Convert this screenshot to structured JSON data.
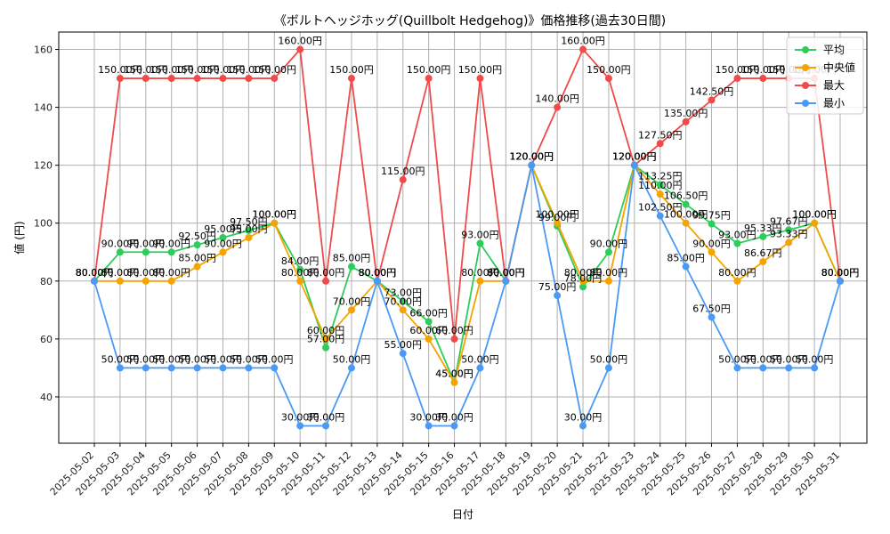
{
  "chart_data": {
    "type": "line",
    "title": "《ボルトヘッジホッグ(Quillbolt Hedgehog)》価格推移(過去30日間)",
    "xlabel": "日付",
    "ylabel": "値 (円)",
    "value_suffix": "円",
    "ylim": [
      24,
      166
    ],
    "yticks": [
      40,
      60,
      80,
      100,
      120,
      140,
      160
    ],
    "grid": true,
    "legend_position": "top-right",
    "categories": [
      "2025-05-02",
      "2025-05-03",
      "2025-05-04",
      "2025-05-05",
      "2025-05-06",
      "2025-05-07",
      "2025-05-08",
      "2025-05-09",
      "2025-05-10",
      "2025-05-11",
      "2025-05-12",
      "2025-05-13",
      "2025-05-14",
      "2025-05-15",
      "2025-05-16",
      "2025-05-17",
      "2025-05-18",
      "2025-05-19",
      "2025-05-20",
      "2025-05-21",
      "2025-05-22",
      "2025-05-23",
      "2025-05-24",
      "2025-05-25",
      "2025-05-26",
      "2025-05-27",
      "2025-05-28",
      "2025-05-29",
      "2025-05-30",
      "2025-05-31"
    ],
    "series": [
      {
        "name": "平均",
        "color": "#2ecc5a",
        "values": [
          80,
          90,
          90,
          90,
          92.5,
          95,
          97.5,
          100,
          84,
          57,
          85,
          80,
          73,
          66,
          45,
          93,
          80,
          120,
          99,
          78,
          90,
          120,
          113.25,
          106.5,
          99.75,
          93,
          95.33,
          97.67,
          100,
          80
        ]
      },
      {
        "name": "中央値",
        "color": "#f5a300",
        "values": [
          80,
          80,
          80,
          80,
          85,
          90,
          95,
          100,
          80,
          60,
          70,
          80,
          70,
          60,
          45,
          80,
          80,
          120,
          100,
          80,
          80,
          120,
          110,
          100,
          90,
          80,
          86.67,
          93.33,
          100,
          80
        ]
      },
      {
        "name": "最大",
        "color": "#f04a4a",
        "values": [
          80,
          150,
          150,
          150,
          150,
          150,
          150,
          150,
          160,
          80,
          150,
          80,
          115,
          150,
          60,
          150,
          80,
          120,
          140,
          160,
          150,
          120,
          127.5,
          135,
          142.5,
          150,
          150,
          150,
          150,
          80
        ]
      },
      {
        "name": "最小",
        "color": "#4a9af5",
        "values": [
          80,
          50,
          50,
          50,
          50,
          50,
          50,
          50,
          30,
          30,
          50,
          80,
          55,
          30,
          30,
          50,
          80,
          120,
          75,
          30,
          50,
          120,
          102.5,
          85,
          67.5,
          50,
          50,
          50,
          50,
          80
        ]
      }
    ]
  }
}
